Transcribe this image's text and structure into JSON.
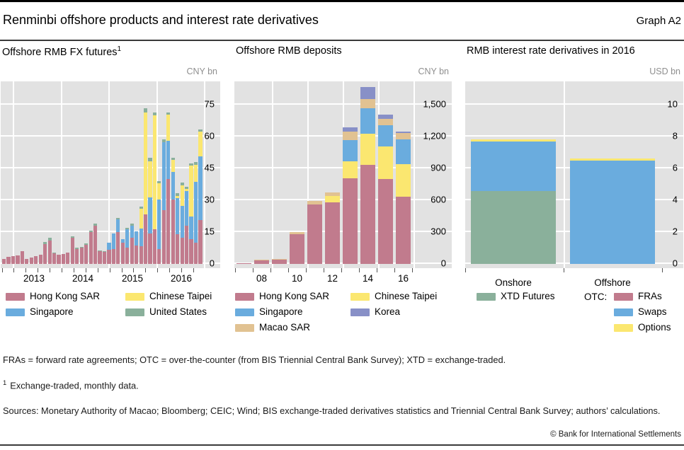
{
  "header": {
    "title": "Renminbi offshore products and interest rate derivatives",
    "graph_label": "Graph A2"
  },
  "panels": [
    {
      "title": "Offshore RMB FX futures",
      "title_superscript": "1",
      "unit": "CNY bn"
    },
    {
      "title": "Offshore RMB deposits",
      "title_superscript": "",
      "unit": "CNY bn"
    },
    {
      "title": "RMB interest rate derivatives in 2016",
      "title_superscript": "",
      "unit": "USD bn",
      "legend_prefix": "OTC:"
    }
  ],
  "colors": {
    "plot_bg": "#e2e2e2",
    "grid": "#ffffff",
    "hong_kong": "#c17b8d",
    "singapore": "#6aacde",
    "chinese_taipei": "#fbe770",
    "united_states": "#8ab09b",
    "macao": "#e1c292",
    "korea": "#8890c7"
  },
  "chart_data": [
    {
      "type": "bar",
      "stacked": true,
      "title": "Offshore RMB FX futures",
      "ylabel": "CNY bn",
      "ylim": [
        0,
        85
      ],
      "yticks": [
        {
          "v": 0,
          "label": "0"
        },
        {
          "v": 15,
          "label": "15"
        },
        {
          "v": 30,
          "label": "30"
        },
        {
          "v": 45,
          "label": "45"
        },
        {
          "v": 60,
          "label": "60"
        },
        {
          "v": 75,
          "label": "75"
        }
      ],
      "x": [
        "2012-11",
        "2012-12",
        "2013-01",
        "2013-02",
        "2013-03",
        "2013-04",
        "2013-05",
        "2013-06",
        "2013-07",
        "2013-08",
        "2013-09",
        "2013-10",
        "2013-11",
        "2013-12",
        "2014-01",
        "2014-02",
        "2014-03",
        "2014-04",
        "2014-05",
        "2014-06",
        "2014-07",
        "2014-08",
        "2014-09",
        "2014-10",
        "2014-11",
        "2014-12",
        "2015-01",
        "2015-02",
        "2015-03",
        "2015-04",
        "2015-05",
        "2015-08",
        "2015-09",
        "2015-10",
        "2015-11",
        "2015-12",
        "2016-01",
        "2016-02",
        "2016-03",
        "2016-04",
        "2016-05",
        "2016-06",
        "2016-07",
        "2016-08"
      ],
      "x_axis_labels": [
        "2013",
        "2014",
        "2015",
        "2016"
      ],
      "series": [
        {
          "name": "Hong Kong SAR",
          "color_key": "hong_kong",
          "values": [
            2.4,
            3.2,
            3.8,
            4.1,
            5.9,
            2.2,
            2.9,
            3.6,
            4.3,
            9.3,
            10.9,
            5.0,
            4.2,
            4.8,
            5.3,
            12.3,
            7.1,
            7.6,
            8.9,
            15.0,
            18.1,
            5.9,
            5.6,
            6.7,
            7.0,
            15.0,
            10.0,
            7.8,
            12.4,
            8.7,
            8.4,
            23.5,
            14.5,
            16.5,
            7.0,
            25.2,
            40.0,
            30.3,
            13.9,
            12.2,
            17.9,
            11.7,
            10.0,
            20.7
          ]
        },
        {
          "name": "Singapore",
          "color_key": "singapore",
          "values": [
            0,
            0,
            0,
            0,
            0,
            0,
            0,
            0,
            0,
            0,
            0,
            0,
            0,
            0,
            0,
            0,
            0,
            0,
            0,
            0,
            0,
            0,
            0,
            3.3,
            7.5,
            6.1,
            1.7,
            8.5,
            5.7,
            6.8,
            8.2,
            0,
            17.0,
            0,
            23.2,
            32.3,
            18.0,
            13.0,
            17.0,
            15.3,
            16.4,
            10.7,
            28.8,
            30.0
          ]
        },
        {
          "name": "Chinese Taipei",
          "color_key": "chinese_taipei",
          "values": [
            0,
            0,
            0,
            0,
            0,
            0,
            0,
            0,
            0,
            0,
            0,
            0,
            0,
            0,
            0,
            0,
            0,
            0,
            0,
            0,
            0,
            0,
            0,
            0,
            0,
            0,
            0,
            0,
            0,
            0,
            9.5,
            48.0,
            17.0,
            53.5,
            7.7,
            0,
            12.5,
            5.7,
            1.0,
            9.6,
            1.0,
            23.8,
            8.0,
            11.6
          ]
        },
        {
          "name": "United States",
          "color_key": "united_states",
          "values": [
            0,
            0,
            0,
            0,
            0,
            0,
            0,
            0,
            0,
            1.0,
            1.3,
            0.5,
            0,
            0,
            0,
            0.8,
            0.7,
            0.5,
            0.8,
            0.8,
            1.0,
            0.4,
            0.4,
            0,
            0,
            0.7,
            0,
            0.8,
            0.8,
            0,
            1.0,
            1.7,
            1.5,
            1.4,
            1.2,
            1.1,
            1.0,
            1.0,
            1.4,
            1.1,
            1.1,
            1.1,
            1.2,
            1.2
          ]
        }
      ],
      "legend": [
        {
          "label": "Hong Kong SAR",
          "color_key": "hong_kong"
        },
        {
          "label": "Singapore",
          "color_key": "singapore"
        },
        {
          "label": "Chinese Taipei",
          "color_key": "chinese_taipei"
        },
        {
          "label": "United States",
          "color_key": "united_states"
        }
      ]
    },
    {
      "type": "bar",
      "stacked": true,
      "title": "Offshore RMB deposits",
      "ylabel": "CNY bn",
      "ylim": [
        0,
        1720
      ],
      "yticks": [
        {
          "v": 0,
          "label": "0"
        },
        {
          "v": 300,
          "label": "300"
        },
        {
          "v": 600,
          "label": "600"
        },
        {
          "v": 900,
          "label": "900"
        },
        {
          "v": 1200,
          "label": "1,200"
        },
        {
          "v": 1500,
          "label": "1,500"
        }
      ],
      "x": [
        "2007",
        "2008",
        "2009",
        "2010",
        "2011",
        "2012",
        "2013",
        "2014",
        "2015",
        "2016"
      ],
      "x_axis_labels": [
        "08",
        "10",
        "12",
        "14",
        "16"
      ],
      "series": [
        {
          "name": "Hong Kong SAR",
          "color_key": "hong_kong",
          "values": [
            10,
            35,
            40,
            280,
            560,
            580,
            805,
            935,
            800,
            635
          ]
        },
        {
          "name": "Chinese Taipei",
          "color_key": "chinese_taipei",
          "values": [
            0,
            0,
            0,
            0,
            0,
            60,
            160,
            295,
            310,
            305
          ]
        },
        {
          "name": "Singapore",
          "color_key": "singapore",
          "values": [
            0,
            0,
            0,
            0,
            0,
            0,
            200,
            240,
            200,
            235
          ]
        },
        {
          "name": "Macao SAR",
          "color_key": "macao",
          "values": [
            0,
            3,
            4,
            20,
            35,
            35,
            80,
            85,
            60,
            60
          ]
        },
        {
          "name": "Korea",
          "color_key": "korea",
          "values": [
            0,
            0,
            0,
            0,
            0,
            0,
            45,
            115,
            35,
            15
          ]
        }
      ],
      "legend": [
        {
          "label": "Hong Kong SAR",
          "color_key": "hong_kong"
        },
        {
          "label": "Singapore",
          "color_key": "singapore"
        },
        {
          "label": "Macao SAR",
          "color_key": "macao"
        },
        {
          "label": "Chinese Taipei",
          "color_key": "chinese_taipei"
        },
        {
          "label": "Korea",
          "color_key": "korea"
        }
      ]
    },
    {
      "type": "bar",
      "stacked": true,
      "title": "RMB interest rate derivatives in 2016",
      "ylabel": "USD bn",
      "ylim": [
        0,
        11.5
      ],
      "yticks": [
        {
          "v": 0,
          "label": "0"
        },
        {
          "v": 2,
          "label": "2"
        },
        {
          "v": 4,
          "label": "4"
        },
        {
          "v": 6,
          "label": "6"
        },
        {
          "v": 8,
          "label": "8"
        },
        {
          "v": 10,
          "label": "10"
        }
      ],
      "x": [
        "Onshore",
        "Offshore"
      ],
      "x_axis_labels": [
        "Onshore",
        "Offshore"
      ],
      "series": [
        {
          "name": "XTD Futures",
          "color_key": "united_states",
          "values": [
            4.6,
            0
          ]
        },
        {
          "name": "FRAs",
          "color_key": "hong_kong",
          "values": [
            0,
            0
          ]
        },
        {
          "name": "Swaps",
          "color_key": "singapore",
          "values": [
            3.1,
            6.5
          ]
        },
        {
          "name": "Options",
          "color_key": "chinese_taipei",
          "values": [
            0.12,
            0.12
          ]
        }
      ],
      "legend": [
        {
          "label": "XTD Futures",
          "color_key": "united_states"
        },
        {
          "label": "FRAs",
          "color_key": "hong_kong"
        },
        {
          "label": "Swaps",
          "color_key": "singapore"
        },
        {
          "label": "Options",
          "color_key": "chinese_taipei"
        }
      ]
    }
  ],
  "footnotes": {
    "abbreviations": "FRAs = forward rate agreements; OTC = over-the-counter (from BIS Triennial Central Bank Survey); XTD = exchange-traded.",
    "fn1_marker": "1",
    "fn1_text": "Exchange-traded, monthly data.",
    "sources": "Sources: Monetary Authority of Macao; Bloomberg; CEIC; Wind; BIS exchange-traded derivatives statistics and Triennial Central Bank Survey; authors’ calculations.",
    "copyright": "© Bank for International Settlements"
  }
}
